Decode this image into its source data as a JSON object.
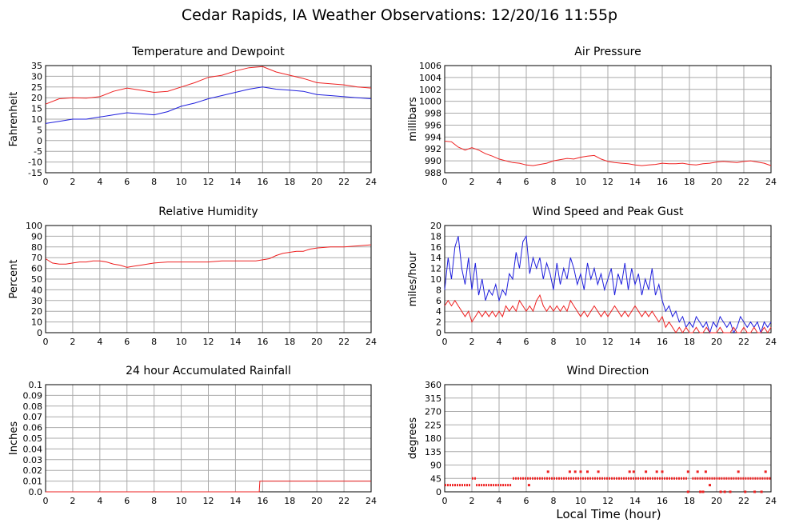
{
  "page_title": "Cedar Rapids, IA Weather Observations: 12/20/16 11:55p",
  "x_axis_label": "Local Time (hour)",
  "colors": {
    "red": "#ee2222",
    "blue": "#1f1fdd",
    "grid": "#aaaaaa"
  },
  "chart_data": [
    {
      "id": "temp",
      "type": "line",
      "title": "Temperature and Dewpoint",
      "ylabel": "Fahrenheit",
      "xlim": [
        0,
        24
      ],
      "ylim": [
        -15,
        35
      ],
      "xticks": [
        0,
        2,
        4,
        6,
        8,
        10,
        12,
        14,
        16,
        18,
        20,
        22,
        24
      ],
      "yticks": [
        -15,
        -10,
        -5,
        0,
        5,
        10,
        15,
        20,
        25,
        30,
        35
      ],
      "grid": true,
      "series": [
        {
          "color": "red",
          "x": [
            0,
            1,
            2,
            3,
            4,
            5,
            6,
            7,
            8,
            9,
            10,
            11,
            12,
            13,
            14,
            15,
            16,
            17,
            18,
            19,
            20,
            21,
            22,
            23,
            24
          ],
          "y": [
            17,
            19.5,
            20,
            19.8,
            20.5,
            23,
            24.5,
            23.5,
            22.5,
            23,
            25,
            27,
            29.5,
            30.5,
            32.5,
            34,
            34.5,
            32,
            30.5,
            29,
            27,
            26.5,
            26,
            25,
            24.5
          ]
        },
        {
          "color": "blue",
          "x": [
            0,
            1,
            2,
            3,
            4,
            5,
            6,
            7,
            8,
            9,
            10,
            11,
            12,
            13,
            14,
            15,
            16,
            17,
            18,
            19,
            20,
            21,
            22,
            23,
            24
          ],
          "y": [
            8,
            9,
            10,
            10,
            11,
            12,
            13,
            12.5,
            12,
            13.5,
            16,
            17.5,
            19.5,
            21,
            22.5,
            24,
            25,
            24,
            23.5,
            23,
            21.5,
            21,
            20.5,
            20,
            19.5
          ]
        }
      ]
    },
    {
      "id": "pressure",
      "type": "line",
      "title": "Air Pressure",
      "ylabel": "millibars",
      "xlim": [
        0,
        24
      ],
      "ylim": [
        988,
        1006
      ],
      "xticks": [
        0,
        2,
        4,
        6,
        8,
        10,
        12,
        14,
        16,
        18,
        20,
        22,
        24
      ],
      "yticks": [
        988,
        990,
        992,
        994,
        996,
        998,
        1000,
        1002,
        1004,
        1006
      ],
      "grid": true,
      "series": [
        {
          "color": "red",
          "x": [
            0,
            0.5,
            1,
            1.5,
            2,
            2.5,
            3,
            3.5,
            4,
            4.5,
            5,
            5.5,
            6,
            6.5,
            7,
            7.5,
            8,
            8.5,
            9,
            9.5,
            10,
            10.5,
            11,
            11.5,
            12,
            12.5,
            13,
            13.5,
            14,
            14.5,
            15,
            15.5,
            16,
            16.5,
            17,
            17.5,
            18,
            18.5,
            19,
            19.5,
            20,
            20.5,
            21,
            21.5,
            22,
            22.5,
            23,
            23.5,
            24
          ],
          "y": [
            993.3,
            993.2,
            992.3,
            991.8,
            992.2,
            991.8,
            991.2,
            990.8,
            990.3,
            990.0,
            989.7,
            989.6,
            989.3,
            989.2,
            989.4,
            989.6,
            990.0,
            990.2,
            990.4,
            990.3,
            990.6,
            990.8,
            990.9,
            990.3,
            989.9,
            989.7,
            989.6,
            989.5,
            989.3,
            989.2,
            989.3,
            989.4,
            989.6,
            989.5,
            989.5,
            989.6,
            989.4,
            989.3,
            989.5,
            989.6,
            989.8,
            989.9,
            989.8,
            989.7,
            989.9,
            990.0,
            989.8,
            989.6,
            989.2
          ]
        }
      ]
    },
    {
      "id": "humidity",
      "type": "line",
      "title": "Relative Humidity",
      "ylabel": "Percent",
      "xlim": [
        0,
        24
      ],
      "ylim": [
        0,
        100
      ],
      "xticks": [
        0,
        2,
        4,
        6,
        8,
        10,
        12,
        14,
        16,
        18,
        20,
        22,
        24
      ],
      "yticks": [
        0,
        10,
        20,
        30,
        40,
        50,
        60,
        70,
        80,
        90,
        100
      ],
      "grid": true,
      "series": [
        {
          "color": "red",
          "x": [
            0,
            0.5,
            1,
            1.5,
            2,
            2.5,
            3,
            3.5,
            4,
            4.5,
            5,
            5.5,
            6,
            6.5,
            7,
            7.5,
            8,
            9,
            10,
            11,
            12,
            13,
            14,
            15,
            15.5,
            16,
            16.5,
            17,
            17.5,
            18,
            18.5,
            19,
            19.5,
            20,
            21,
            22,
            23,
            24
          ],
          "y": [
            69,
            65,
            64,
            64,
            65,
            66,
            66,
            67,
            67,
            66,
            64,
            63,
            61,
            62,
            63,
            64,
            65,
            66,
            66,
            66,
            66,
            67,
            67,
            67,
            67,
            68,
            69,
            72,
            74,
            75,
            76,
            76,
            78,
            79,
            80,
            80,
            81,
            82
          ]
        }
      ]
    },
    {
      "id": "wind",
      "type": "line",
      "title": "Wind Speed and Peak Gust",
      "ylabel": "miles/hour",
      "xlim": [
        0,
        24
      ],
      "ylim": [
        0,
        20
      ],
      "xticks": [
        0,
        2,
        4,
        6,
        8,
        10,
        12,
        14,
        16,
        18,
        20,
        22,
        24
      ],
      "yticks": [
        0,
        2,
        4,
        6,
        8,
        10,
        12,
        14,
        16,
        18,
        20
      ],
      "grid": true,
      "series": [
        {
          "color": "blue",
          "x": [
            0,
            0.25,
            0.5,
            0.75,
            1,
            1.25,
            1.5,
            1.75,
            2,
            2.25,
            2.5,
            2.75,
            3,
            3.25,
            3.5,
            3.75,
            4,
            4.25,
            4.5,
            4.75,
            5,
            5.25,
            5.5,
            5.75,
            6,
            6.25,
            6.5,
            6.75,
            7,
            7.25,
            7.5,
            7.75,
            8,
            8.25,
            8.5,
            8.75,
            9,
            9.25,
            9.5,
            9.75,
            10,
            10.25,
            10.5,
            10.75,
            11,
            11.25,
            11.5,
            11.75,
            12,
            12.25,
            12.5,
            12.75,
            13,
            13.25,
            13.5,
            13.75,
            14,
            14.25,
            14.5,
            14.75,
            15,
            15.25,
            15.5,
            15.75,
            16,
            16.25,
            16.5,
            16.75,
            17,
            17.25,
            17.5,
            17.75,
            18,
            18.25,
            18.5,
            18.75,
            19,
            19.25,
            19.5,
            19.75,
            20,
            20.25,
            20.5,
            20.75,
            21,
            21.25,
            21.5,
            21.75,
            22,
            22.25,
            22.5,
            22.75,
            23,
            23.25,
            23.5,
            23.75,
            24
          ],
          "y": [
            8,
            14,
            10,
            16,
            18,
            12,
            9,
            14,
            8,
            13,
            7,
            10,
            6,
            8,
            7,
            9,
            6,
            8,
            7,
            11,
            10,
            15,
            12,
            17,
            18,
            11,
            14,
            12,
            14,
            10,
            13,
            11,
            8,
            13,
            9,
            12,
            10,
            14,
            12,
            9,
            11,
            8,
            13,
            10,
            12,
            9,
            11,
            8,
            10,
            12,
            7,
            11,
            9,
            13,
            8,
            12,
            9,
            11,
            7,
            10,
            8,
            12,
            7,
            9,
            6,
            4,
            5,
            3,
            4,
            2,
            3,
            1,
            2,
            1,
            3,
            2,
            1,
            2,
            0,
            2,
            1,
            3,
            2,
            1,
            2,
            0,
            1,
            3,
            2,
            1,
            2,
            1,
            2,
            0,
            2,
            1,
            2
          ]
        },
        {
          "color": "red",
          "x": [
            0,
            0.25,
            0.5,
            0.75,
            1,
            1.25,
            1.5,
            1.75,
            2,
            2.25,
            2.5,
            2.75,
            3,
            3.25,
            3.5,
            3.75,
            4,
            4.25,
            4.5,
            4.75,
            5,
            5.25,
            5.5,
            5.75,
            6,
            6.25,
            6.5,
            6.75,
            7,
            7.25,
            7.5,
            7.75,
            8,
            8.25,
            8.5,
            8.75,
            9,
            9.25,
            9.5,
            9.75,
            10,
            10.25,
            10.5,
            10.75,
            11,
            11.25,
            11.5,
            11.75,
            12,
            12.25,
            12.5,
            12.75,
            13,
            13.25,
            13.5,
            13.75,
            14,
            14.25,
            14.5,
            14.75,
            15,
            15.25,
            15.5,
            15.75,
            16,
            16.25,
            16.5,
            16.75,
            17,
            17.25,
            17.5,
            17.75,
            18,
            18.25,
            18.5,
            18.75,
            19,
            19.25,
            19.5,
            19.75,
            20,
            20.25,
            20.5,
            20.75,
            21,
            21.25,
            21.5,
            21.75,
            22,
            22.25,
            22.5,
            22.75,
            23,
            23.25,
            23.5,
            23.75,
            24
          ],
          "y": [
            5,
            6,
            5,
            6,
            5,
            4,
            3,
            4,
            2,
            3,
            4,
            3,
            4,
            3,
            4,
            3,
            4,
            3,
            5,
            4,
            5,
            4,
            6,
            5,
            4,
            5,
            4,
            6,
            7,
            5,
            4,
            5,
            4,
            5,
            4,
            5,
            4,
            6,
            5,
            4,
            3,
            4,
            3,
            4,
            5,
            4,
            3,
            4,
            3,
            4,
            5,
            4,
            3,
            4,
            3,
            4,
            5,
            4,
            3,
            4,
            3,
            4,
            3,
            2,
            3,
            1,
            2,
            1,
            0,
            1,
            0,
            1,
            0,
            0,
            1,
            0,
            0,
            1,
            0,
            0,
            0,
            1,
            0,
            0,
            0,
            1,
            0,
            0,
            1,
            0,
            0,
            1,
            0,
            0,
            1,
            0,
            1
          ]
        }
      ]
    },
    {
      "id": "rain",
      "type": "line",
      "title": "24 hour Accumulated Rainfall",
      "ylabel": "Inches",
      "xlim": [
        0,
        24
      ],
      "ylim": [
        0,
        0.1
      ],
      "xticks": [
        0,
        2,
        4,
        6,
        8,
        10,
        12,
        14,
        16,
        18,
        20,
        22,
        24
      ],
      "yticks": [
        "0.0",
        "0.01",
        "0.02",
        "0.03",
        "0.04",
        "0.05",
        "0.06",
        "0.07",
        "0.08",
        "0.09",
        "0.1"
      ],
      "grid": true,
      "series": [
        {
          "color": "red",
          "x": [
            0,
            15.75,
            15.8,
            24
          ],
          "y": [
            0,
            0,
            0.01,
            0.01
          ]
        }
      ]
    },
    {
      "id": "direction",
      "type": "scatter",
      "title": "Wind Direction",
      "ylabel": "degrees",
      "xlim": [
        0,
        24
      ],
      "ylim": [
        0,
        360
      ],
      "xticks": [
        0,
        2,
        4,
        6,
        8,
        10,
        12,
        14,
        16,
        18,
        20,
        22,
        24
      ],
      "yticks": [
        0,
        45,
        90,
        135,
        180,
        225,
        270,
        315,
        360
      ],
      "grid": true,
      "series": [
        {
          "color": "red",
          "segments": [
            {
              "x0": 0,
              "x1": 1.9,
              "y": 22.5
            },
            {
              "x0": 2.0,
              "x1": 2.3,
              "y": 45
            },
            {
              "x0": 2.3,
              "x1": 4.9,
              "y": 22.5
            },
            {
              "x0": 5.0,
              "x1": 17.9,
              "y": 45
            },
            {
              "x0": 18.2,
              "x1": 24,
              "y": 45
            }
          ],
          "points": [
            {
              "x": 7.6,
              "y": 67.5
            },
            {
              "x": 9.2,
              "y": 67.5
            },
            {
              "x": 9.6,
              "y": 67.5
            },
            {
              "x": 10.0,
              "y": 67.5
            },
            {
              "x": 10.5,
              "y": 67.5
            },
            {
              "x": 11.3,
              "y": 67.5
            },
            {
              "x": 13.6,
              "y": 67.5
            },
            {
              "x": 13.9,
              "y": 67.5
            },
            {
              "x": 14.8,
              "y": 67.5
            },
            {
              "x": 15.6,
              "y": 67.5
            },
            {
              "x": 16.0,
              "y": 67.5
            },
            {
              "x": 17.9,
              "y": 67.5
            },
            {
              "x": 18.6,
              "y": 67.5
            },
            {
              "x": 19.2,
              "y": 67.5
            },
            {
              "x": 21.6,
              "y": 67.5
            },
            {
              "x": 23.6,
              "y": 67.5
            },
            {
              "x": 6.2,
              "y": 22.5
            },
            {
              "x": 19.5,
              "y": 22.5
            },
            {
              "x": 17.9,
              "y": 0
            },
            {
              "x": 18.8,
              "y": 0
            },
            {
              "x": 19.0,
              "y": 0
            },
            {
              "x": 20.3,
              "y": 0
            },
            {
              "x": 20.6,
              "y": 0
            },
            {
              "x": 21.0,
              "y": 0
            },
            {
              "x": 22.1,
              "y": 0
            },
            {
              "x": 22.8,
              "y": 0
            },
            {
              "x": 23.3,
              "y": 0
            }
          ]
        }
      ]
    }
  ]
}
